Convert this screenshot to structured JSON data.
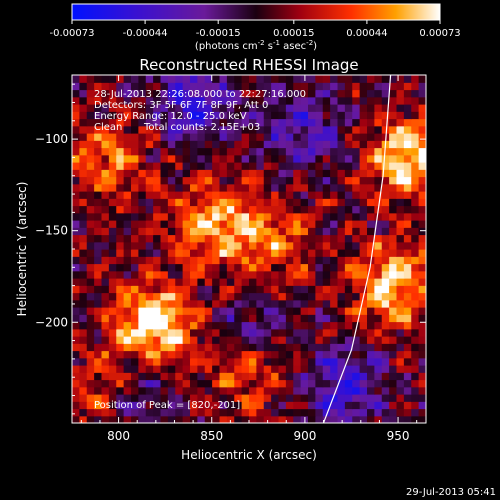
{
  "chart_data": {
    "type": "heatmap",
    "title": "Reconstructed RHESSI Image",
    "xlabel": "Heliocentric X (arcsec)",
    "ylabel": "Heliocentric Y (arcsec)",
    "xlim": [
      775,
      965
    ],
    "ylim": [
      -255,
      -65
    ],
    "x_ticks": [
      800,
      850,
      900,
      950
    ],
    "y_ticks": [
      -100,
      -150,
      -200
    ],
    "colorbar": {
      "range": [
        -0.00073,
        0.00073
      ],
      "ticks": [
        "-0.00073",
        "-0.00044",
        "-0.00015",
        "0.00015",
        "0.00044",
        "0.00073"
      ],
      "unit_label_parts": [
        "(photons cm",
        "-2",
        " s",
        "-1",
        " asec",
        "-2",
        ")"
      ]
    },
    "annotations": {
      "time_range": "28-Jul-2013 22:26:08.000 to 22:27:16.000",
      "detectors": "Detectors: 3F 5F 6F 7F 8F 9F, Att 0",
      "energy_range": "Energy Range: 12.0 - 25.0 keV",
      "clean": "Clean",
      "total_counts": "Total counts: 2.15E+03",
      "peak": "Position of Peak = [820,-201]"
    },
    "limb_curve": [
      [
        910,
        -255
      ],
      [
        925,
        -215
      ],
      [
        935,
        -170
      ],
      [
        942,
        -120
      ],
      [
        946,
        -65
      ]
    ],
    "hot_regions": [
      {
        "x": 795,
        "y": -110,
        "w": 0.55
      },
      {
        "x": 820,
        "y": -200,
        "w": 1.0
      },
      {
        "x": 850,
        "y": -145,
        "w": 0.7
      },
      {
        "x": 880,
        "y": -155,
        "w": 0.55
      },
      {
        "x": 955,
        "y": -110,
        "w": 0.85
      },
      {
        "x": 948,
        "y": -180,
        "w": 0.9
      },
      {
        "x": 870,
        "y": -225,
        "w": 0.5
      },
      {
        "x": 790,
        "y": -235,
        "w": 0.4
      }
    ],
    "cold_regions": [
      {
        "x": 840,
        "y": -80,
        "w": 0.9
      },
      {
        "x": 900,
        "y": -95,
        "w": 0.7
      },
      {
        "x": 870,
        "y": -205,
        "w": 0.6
      },
      {
        "x": 920,
        "y": -235,
        "w": 0.9
      },
      {
        "x": 810,
        "y": -240,
        "w": 0.5
      }
    ]
  },
  "footer": {
    "timestamp": "29-Jul-2013 05:41"
  }
}
